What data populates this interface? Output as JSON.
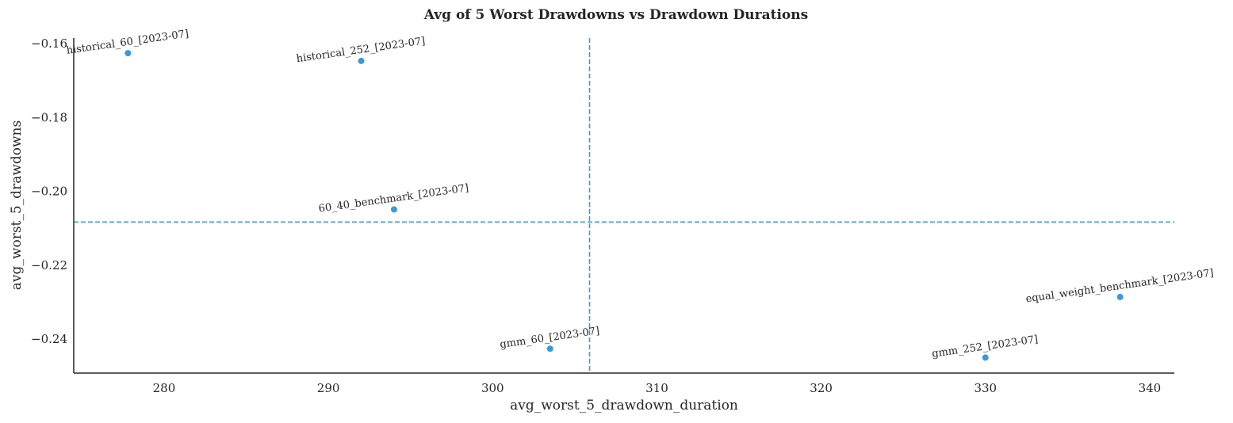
{
  "chart_data": {
    "type": "scatter",
    "title": "Avg of 5 Worst Drawdowns vs Drawdown Durations",
    "xlabel": "avg_worst_5_drawdown_duration",
    "ylabel": "avg_worst_5_drawdowns",
    "xlim": [
      274.5,
      341.5
    ],
    "ylim": [
      -0.2492,
      -0.1585
    ],
    "xticks": [
      280,
      290,
      300,
      310,
      320,
      330,
      340
    ],
    "xtick_labels": [
      "280",
      "290",
      "300",
      "310",
      "320",
      "330",
      "340"
    ],
    "yticks": [
      -0.16,
      -0.18,
      -0.2,
      -0.22,
      -0.24
    ],
    "ytick_labels": [
      "−0.16",
      "−0.18",
      "−0.20",
      "−0.22",
      "−0.24"
    ],
    "points": [
      {
        "label": "historical_60_[2023-07]",
        "x": 277.8,
        "y": -0.1626
      },
      {
        "label": "historical_252_[2023-07]",
        "x": 292.0,
        "y": -0.1647
      },
      {
        "label": "60_40_benchmark_[2023-07]",
        "x": 294.0,
        "y": -0.2049
      },
      {
        "label": "gmm_60_[2023-07]",
        "x": 303.5,
        "y": -0.2426
      },
      {
        "label": "gmm_252_[2023-07]",
        "x": 330.0,
        "y": -0.245
      },
      {
        "label": "equal_weight_benchmark_[2023-07]",
        "x": 338.2,
        "y": -0.2286
      }
    ],
    "reference_lines": {
      "vertical_x": 305.9,
      "horizontal_y": -0.2083
    },
    "grid": false,
    "legend": "none",
    "colors": {
      "point": "#3a9ad9",
      "reference_line": "#3a9ad9",
      "axis": "#262626"
    }
  }
}
